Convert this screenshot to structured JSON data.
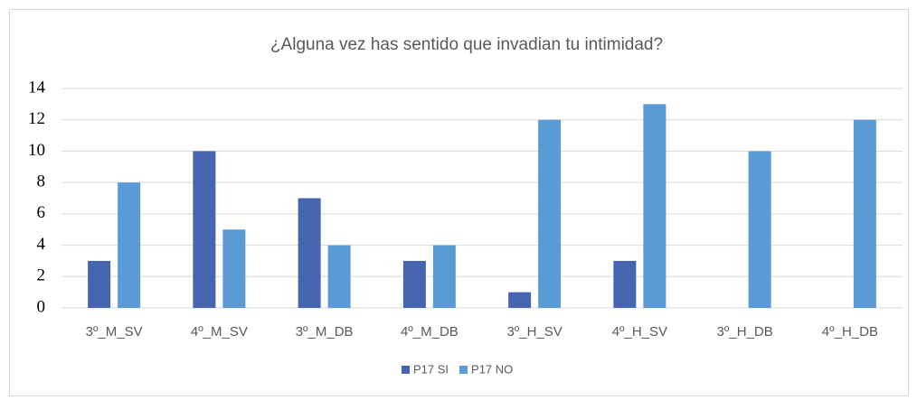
{
  "chart_data": {
    "type": "bar",
    "title": "¿Alguna vez has sentido que invadian tu intimidad?",
    "categories": [
      "3º_M_SV",
      "4º_M_SV",
      "3º_M_DB",
      "4º_M_DB",
      "3º_H_SV",
      "4º_H_SV",
      "3º_H_DB",
      "4º_H_DB"
    ],
    "series": [
      {
        "name": "P17 SI",
        "color": "#4565b1",
        "values": [
          3,
          10,
          7,
          3,
          1,
          3,
          0,
          0
        ]
      },
      {
        "name": "P17 NO",
        "color": "#5b9bd5",
        "values": [
          8,
          5,
          4,
          4,
          12,
          13,
          10,
          12
        ]
      }
    ],
    "ylim": [
      0,
      14
    ],
    "yticks": [
      0,
      2,
      4,
      6,
      8,
      10,
      12,
      14
    ],
    "grid": true,
    "legend": "bottom"
  }
}
